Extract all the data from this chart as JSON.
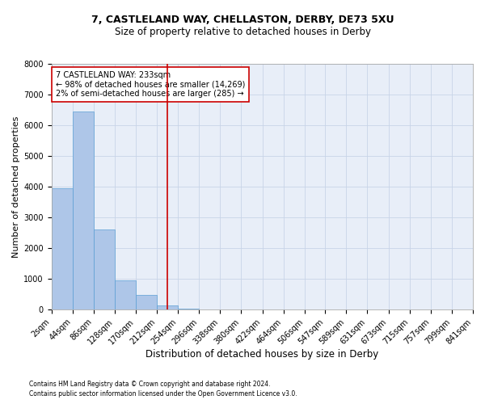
{
  "title_line1": "7, CASTLELAND WAY, CHELLASTON, DERBY, DE73 5XU",
  "title_line2": "Size of property relative to detached houses in Derby",
  "xlabel": "Distribution of detached houses by size in Derby",
  "ylabel": "Number of detached properties",
  "footnote1": "Contains HM Land Registry data © Crown copyright and database right 2024.",
  "footnote2": "Contains public sector information licensed under the Open Government Licence v3.0.",
  "annotation_line1": "7 CASTLELAND WAY: 233sqm",
  "annotation_line2": "← 98% of detached houses are smaller (14,269)",
  "annotation_line3": "2% of semi-detached houses are larger (285) →",
  "bin_edges": [
    2,
    44,
    86,
    128,
    170,
    212,
    254,
    296,
    338,
    380,
    422,
    464,
    506,
    547,
    589,
    631,
    673,
    715,
    757,
    799,
    841
  ],
  "bar_heights": [
    3950,
    6450,
    2600,
    950,
    470,
    130,
    30,
    0,
    0,
    0,
    0,
    0,
    0,
    0,
    0,
    0,
    0,
    0,
    0,
    0
  ],
  "bar_color": "#aec6e8",
  "bar_edge_color": "#5a9fd4",
  "vline_color": "#cc0000",
  "vline_x": 233,
  "annotation_box_color": "#cc0000",
  "ylim": [
    0,
    8000
  ],
  "yticks": [
    0,
    1000,
    2000,
    3000,
    4000,
    5000,
    6000,
    7000,
    8000
  ],
  "grid_color": "#c8d4e8",
  "bg_color": "#e8eef8",
  "title1_fontsize": 9,
  "title2_fontsize": 8.5,
  "xlabel_fontsize": 8.5,
  "ylabel_fontsize": 8,
  "tick_fontsize": 7,
  "annot_fontsize": 7,
  "footnote_fontsize": 5.5
}
